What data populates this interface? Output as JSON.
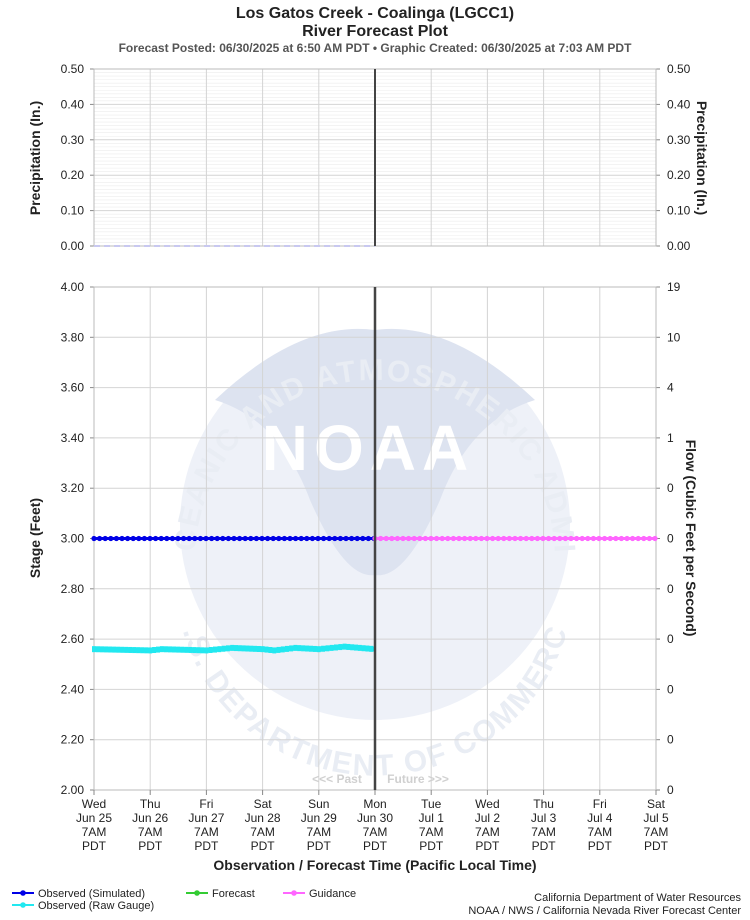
{
  "header": {
    "title_line1": "Los Gatos Creek - Coalinga (LGCC1)",
    "title_line2": "River Forecast Plot",
    "subtitle": "Forecast Posted: 06/30/2025 at 6:50 AM PDT  •  Graphic Created: 06/30/2025 at 7:03 AM PDT"
  },
  "watermark": {
    "center_text": "NOAA",
    "top_arc": "NATIONAL OCEANIC AND ATMOSPHERIC ADMINISTRATION",
    "bottom_arc": "U.S. DEPARTMENT OF COMMERCE"
  },
  "colors": {
    "observed_simulated": "#0000e6",
    "observed_raw": "#22e8f0",
    "forecast": "#33cc33",
    "guidance": "#ff66ff",
    "now_line": "#444444",
    "grid": "#d4d4d4",
    "precip_trace": "#c8c8f0"
  },
  "chart_data": [
    {
      "type": "line",
      "panel": "precipitation",
      "ylabel_left": "Precipitation (In.)",
      "ylabel_right": "Precipitation (In.)",
      "ylim": [
        0,
        0.5
      ],
      "yticks": [
        "0.00",
        "0.10",
        "0.20",
        "0.30",
        "0.40",
        "0.50"
      ],
      "grid": true,
      "series": [
        {
          "values_x_days_from_jun25_7am": [
            0,
            5
          ],
          "y": [
            0.0,
            0.0
          ]
        }
      ]
    },
    {
      "type": "line",
      "panel": "stage-flow",
      "ylabel_left": "Stage (Feet)",
      "ylabel_right": "Flow (Cubic Feet per Second)",
      "ylim": [
        2.0,
        4.0
      ],
      "yticks": [
        "2.00",
        "2.20",
        "2.40",
        "2.60",
        "2.80",
        "3.00",
        "3.20",
        "3.40",
        "3.60",
        "3.80",
        "4.00"
      ],
      "yticks_right": [
        "0",
        "0",
        "0",
        "0",
        "0",
        "0",
        "0",
        "1",
        "4",
        "10",
        "19"
      ],
      "xlabel": "Observation / Forecast Time (Pacific Local Time)",
      "x_ticks": [
        {
          "day": "Wed",
          "date": "Jun 25",
          "time": "7AM",
          "tz": "PDT"
        },
        {
          "day": "Thu",
          "date": "Jun 26",
          "time": "7AM",
          "tz": "PDT"
        },
        {
          "day": "Fri",
          "date": "Jun 27",
          "time": "7AM",
          "tz": "PDT"
        },
        {
          "day": "Sat",
          "date": "Jun 28",
          "time": "7AM",
          "tz": "PDT"
        },
        {
          "day": "Sun",
          "date": "Jun 29",
          "time": "7AM",
          "tz": "PDT"
        },
        {
          "day": "Mon",
          "date": "Jun 30",
          "time": "7AM",
          "tz": "PDT"
        },
        {
          "day": "Tue",
          "date": "Jul 1",
          "time": "7AM",
          "tz": "PDT"
        },
        {
          "day": "Wed",
          "date": "Jul 2",
          "time": "7AM",
          "tz": "PDT"
        },
        {
          "day": "Thu",
          "date": "Jul 3",
          "time": "7AM",
          "tz": "PDT"
        },
        {
          "day": "Fri",
          "date": "Jul 4",
          "time": "7AM",
          "tz": "PDT"
        },
        {
          "day": "Sat",
          "date": "Jul 5",
          "time": "7AM",
          "tz": "PDT"
        }
      ],
      "now_x": "Jun 30 7AM",
      "past_label": "<<< Past",
      "future_label": "Future >>>",
      "grid": true,
      "series": [
        {
          "name": "Observed (Simulated)",
          "x_range": [
            "Jun 25 7AM",
            "Jun 30 7AM"
          ],
          "y": 3.0
        },
        {
          "name": "Observed (Raw Gauge)",
          "x_range": [
            "Jun 25 7AM",
            "Jun 30 7AM"
          ],
          "y_points": [
            {
              "x": "Jun 25 7AM",
              "y": 2.56
            },
            {
              "x": "Jun 26 7AM",
              "y": 2.555
            },
            {
              "x": "Jun 26 12PM",
              "y": 2.56
            },
            {
              "x": "Jun 27 7AM",
              "y": 2.555
            },
            {
              "x": "Jun 27 6PM",
              "y": 2.565
            },
            {
              "x": "Jun 28 7AM",
              "y": 2.56
            },
            {
              "x": "Jun 28 12PM",
              "y": 2.555
            },
            {
              "x": "Jun 28 9PM",
              "y": 2.565
            },
            {
              "x": "Jun 29 7AM",
              "y": 2.56
            },
            {
              "x": "Jun 29 6PM",
              "y": 2.57
            },
            {
              "x": "Jun 30 7AM",
              "y": 2.56
            }
          ]
        },
        {
          "name": "Forecast",
          "x_range": [],
          "y": null
        },
        {
          "name": "Guidance",
          "x_range": [
            "Jun 30 7AM",
            "Jul 5 7AM"
          ],
          "y": 3.0
        }
      ]
    }
  ],
  "legend": [
    {
      "label": "Observed (Simulated)",
      "color": "#0000e6"
    },
    {
      "label": "Observed (Raw Gauge)",
      "color": "#22e8f0"
    },
    {
      "label": "Forecast",
      "color": "#33cc33"
    },
    {
      "label": "Guidance",
      "color": "#ff66ff"
    }
  ],
  "credits": {
    "line1": "California Department of Water Resources",
    "line2": "NOAA / NWS / California Nevada River Forecast Center"
  }
}
